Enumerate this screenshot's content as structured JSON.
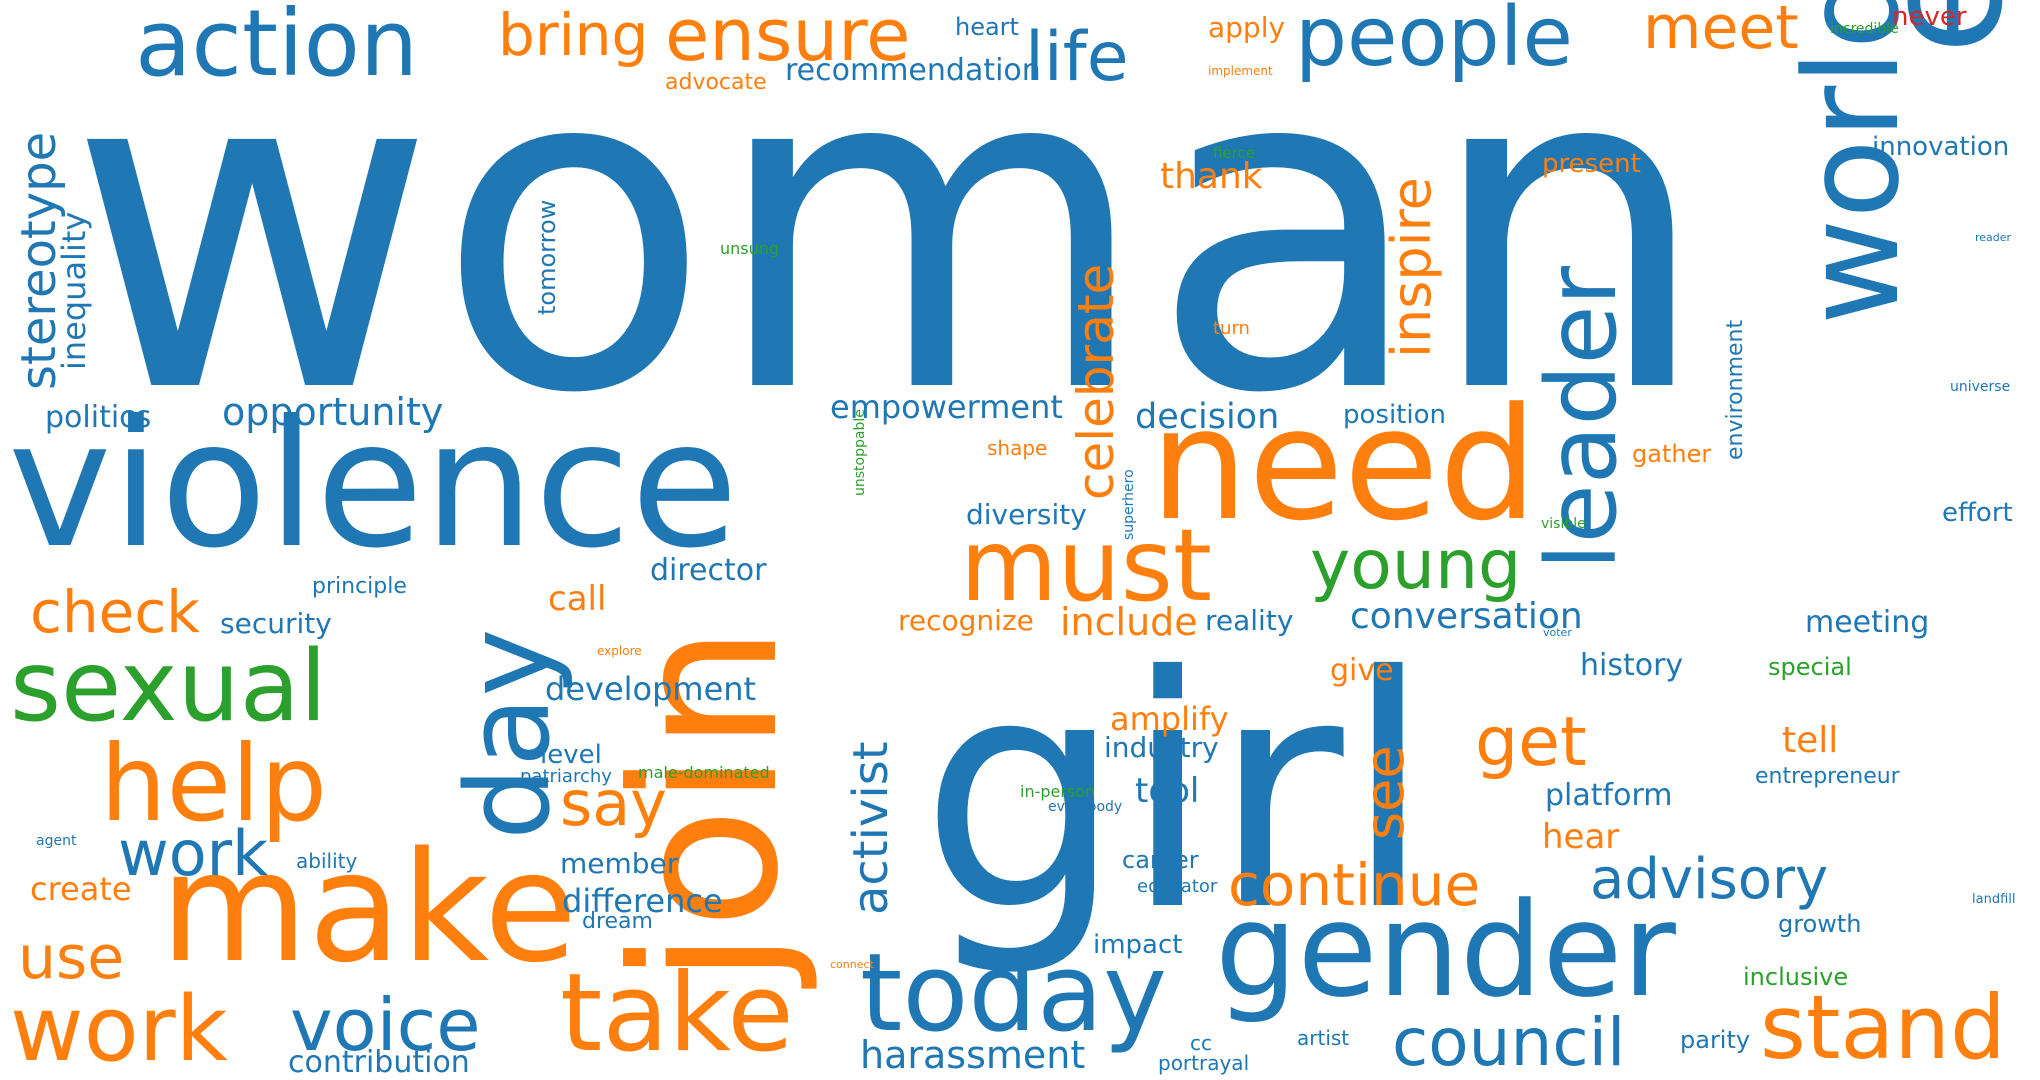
{
  "palette": {
    "blue": "#1f77b4",
    "orange": "#ff7f0e",
    "green": "#2ca02c",
    "red": "#d62728"
  },
  "words": [
    {
      "text": "woman",
      "color": "blue"
    },
    {
      "text": "girl",
      "color": "blue"
    },
    {
      "text": "equality",
      "color": "blue"
    },
    {
      "text": "violence",
      "color": "blue"
    },
    {
      "text": "gender",
      "color": "blue"
    },
    {
      "text": "world",
      "color": "blue"
    },
    {
      "text": "make",
      "color": "orange"
    },
    {
      "text": "join",
      "color": "orange"
    },
    {
      "text": "need",
      "color": "orange"
    },
    {
      "text": "day",
      "color": "blue"
    },
    {
      "text": "take",
      "color": "orange"
    },
    {
      "text": "today",
      "color": "blue"
    },
    {
      "text": "sexual",
      "color": "green"
    },
    {
      "text": "help",
      "color": "orange"
    },
    {
      "text": "must",
      "color": "orange"
    },
    {
      "text": "action",
      "color": "blue"
    },
    {
      "text": "leader",
      "color": "blue"
    },
    {
      "text": "work",
      "color": "orange"
    },
    {
      "text": "people",
      "color": "blue"
    },
    {
      "text": "ensure",
      "color": "orange"
    },
    {
      "text": "stand",
      "color": "orange"
    },
    {
      "text": "voice",
      "color": "blue"
    },
    {
      "text": "council",
      "color": "blue"
    },
    {
      "text": "life",
      "color": "blue"
    },
    {
      "text": "young",
      "color": "green"
    },
    {
      "text": "continue",
      "color": "orange"
    },
    {
      "text": "advisory",
      "color": "blue"
    },
    {
      "text": "get",
      "color": "orange"
    },
    {
      "text": "check",
      "color": "orange"
    },
    {
      "text": "meet",
      "color": "orange"
    },
    {
      "text": "bring",
      "color": "orange"
    },
    {
      "text": "work",
      "color": "blue"
    },
    {
      "text": "use",
      "color": "orange"
    },
    {
      "text": "say",
      "color": "orange"
    },
    {
      "text": "celebrate",
      "color": "orange"
    },
    {
      "text": "inspire",
      "color": "orange"
    },
    {
      "text": "activist",
      "color": "blue"
    },
    {
      "text": "see",
      "color": "orange"
    },
    {
      "text": "stereotype",
      "color": "blue"
    },
    {
      "text": "harassment",
      "color": "blue"
    },
    {
      "text": "opportunity",
      "color": "blue"
    },
    {
      "text": "conversation",
      "color": "blue"
    },
    {
      "text": "decision",
      "color": "blue"
    },
    {
      "text": "empowerment",
      "color": "blue"
    },
    {
      "text": "thank",
      "color": "orange"
    },
    {
      "text": "include",
      "color": "orange"
    },
    {
      "text": "development",
      "color": "blue"
    },
    {
      "text": "difference",
      "color": "blue"
    },
    {
      "text": "recommendation",
      "color": "blue"
    },
    {
      "text": "politics",
      "color": "blue"
    },
    {
      "text": "contribution",
      "color": "blue"
    },
    {
      "text": "call",
      "color": "orange"
    },
    {
      "text": "director",
      "color": "blue"
    },
    {
      "text": "diversity",
      "color": "blue"
    },
    {
      "text": "amplify",
      "color": "orange"
    },
    {
      "text": "tool",
      "color": "blue"
    },
    {
      "text": "create",
      "color": "orange"
    },
    {
      "text": "inequality",
      "color": "blue"
    },
    {
      "text": "security",
      "color": "blue"
    },
    {
      "text": "history",
      "color": "blue"
    },
    {
      "text": "platform",
      "color": "blue"
    },
    {
      "text": "hear",
      "color": "orange"
    },
    {
      "text": "tell",
      "color": "orange"
    },
    {
      "text": "recognize",
      "color": "orange"
    },
    {
      "text": "meeting",
      "color": "blue"
    },
    {
      "text": "member",
      "color": "blue"
    },
    {
      "text": "industry",
      "color": "blue"
    },
    {
      "text": "innovation",
      "color": "blue"
    },
    {
      "text": "position",
      "color": "blue"
    },
    {
      "text": "effort",
      "color": "blue"
    },
    {
      "text": "tomorrow",
      "color": "blue"
    },
    {
      "text": "give",
      "color": "orange"
    },
    {
      "text": "reality",
      "color": "blue"
    },
    {
      "text": "impact",
      "color": "blue"
    },
    {
      "text": "career",
      "color": "blue"
    },
    {
      "text": "present",
      "color": "orange"
    },
    {
      "text": "advocate",
      "color": "orange"
    },
    {
      "text": "apply",
      "color": "orange"
    },
    {
      "text": "heart",
      "color": "blue"
    },
    {
      "text": "level",
      "color": "blue"
    },
    {
      "text": "growth",
      "color": "blue"
    },
    {
      "text": "entrepreneur",
      "color": "blue"
    },
    {
      "text": "never",
      "color": "red"
    },
    {
      "text": "gather",
      "color": "orange"
    },
    {
      "text": "special",
      "color": "green"
    },
    {
      "text": "inclusive",
      "color": "green"
    },
    {
      "text": "parity",
      "color": "blue"
    },
    {
      "text": "principle",
      "color": "blue"
    },
    {
      "text": "environment",
      "color": "blue"
    },
    {
      "text": "ability",
      "color": "blue"
    },
    {
      "text": "dream",
      "color": "blue"
    },
    {
      "text": "portrayal",
      "color": "blue"
    },
    {
      "text": "patriarchy",
      "color": "blue"
    },
    {
      "text": "shape",
      "color": "orange"
    },
    {
      "text": "artist",
      "color": "blue"
    },
    {
      "text": "cc",
      "color": "blue"
    },
    {
      "text": "educator",
      "color": "blue"
    },
    {
      "text": "turn",
      "color": "orange"
    },
    {
      "text": "fierce",
      "color": "green"
    },
    {
      "text": "unsung",
      "color": "green"
    },
    {
      "text": "in-person",
      "color": "green"
    },
    {
      "text": "male-dominated",
      "color": "green"
    },
    {
      "text": "superhero",
      "color": "blue"
    },
    {
      "text": "unstoppable",
      "color": "green"
    },
    {
      "text": "visible",
      "color": "green"
    },
    {
      "text": "agent",
      "color": "blue"
    },
    {
      "text": "universe",
      "color": "blue"
    },
    {
      "text": "everybody",
      "color": "blue"
    },
    {
      "text": "incredible",
      "color": "green"
    },
    {
      "text": "implement",
      "color": "orange"
    },
    {
      "text": "explore",
      "color": "orange"
    },
    {
      "text": "voter",
      "color": "blue"
    },
    {
      "text": "connect",
      "color": "orange"
    },
    {
      "text": "landfill",
      "color": "blue"
    },
    {
      "text": "reader",
      "color": "blue"
    }
  ]
}
